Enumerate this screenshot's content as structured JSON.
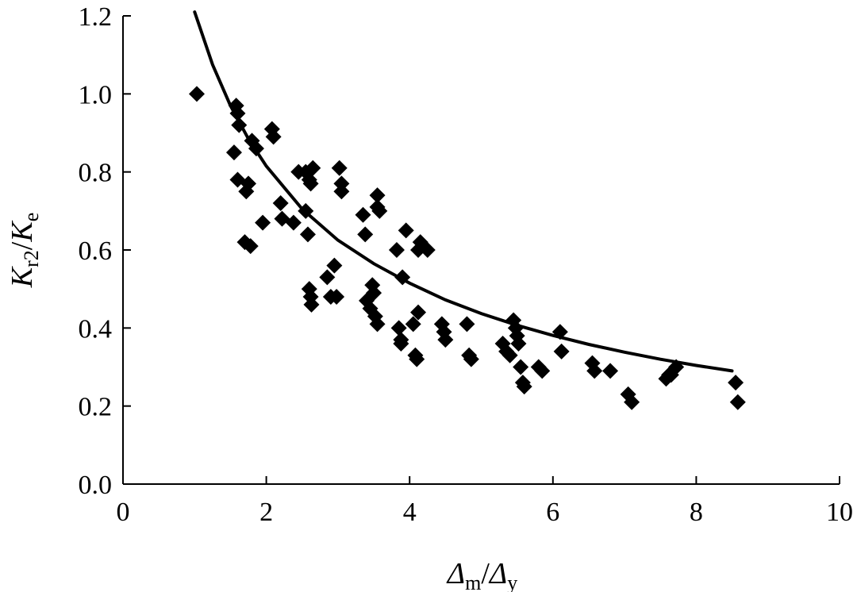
{
  "chart_data": {
    "type": "scatter",
    "title": "",
    "xlabel": {
      "main": "Δ",
      "sub": "m",
      "sep": "/",
      "main2": "Δ",
      "sub2": "y"
    },
    "ylabel": {
      "main": "K",
      "sub": "r2",
      "sep": "/",
      "main2": "K",
      "sub2": "e"
    },
    "xlim": [
      0,
      10
    ],
    "ylim": [
      0,
      1.2
    ],
    "xticks": [
      "0",
      "2",
      "4",
      "6",
      "8",
      "10"
    ],
    "yticks": [
      "0.0",
      "0.2",
      "0.4",
      "0.6",
      "0.8",
      "1.0",
      "1.2"
    ],
    "grid": false,
    "series": [
      {
        "marker": "diamond",
        "points": [
          [
            1.03,
            1.0
          ],
          [
            1.58,
            0.97
          ],
          [
            1.6,
            0.95
          ],
          [
            1.62,
            0.92
          ],
          [
            1.55,
            0.85
          ],
          [
            1.6,
            0.78
          ],
          [
            1.75,
            0.77
          ],
          [
            1.72,
            0.75
          ],
          [
            1.7,
            0.62
          ],
          [
            1.78,
            0.61
          ],
          [
            1.8,
            0.88
          ],
          [
            1.86,
            0.86
          ],
          [
            1.95,
            0.67
          ],
          [
            2.08,
            0.91
          ],
          [
            2.1,
            0.89
          ],
          [
            2.2,
            0.72
          ],
          [
            2.22,
            0.68
          ],
          [
            2.38,
            0.67
          ],
          [
            2.45,
            0.8
          ],
          [
            2.55,
            0.8
          ],
          [
            2.6,
            0.78
          ],
          [
            2.65,
            0.81
          ],
          [
            2.62,
            0.77
          ],
          [
            2.55,
            0.7
          ],
          [
            2.58,
            0.64
          ],
          [
            2.6,
            0.5
          ],
          [
            2.62,
            0.48
          ],
          [
            2.63,
            0.46
          ],
          [
            2.85,
            0.53
          ],
          [
            2.9,
            0.48
          ],
          [
            2.95,
            0.56
          ],
          [
            2.98,
            0.48
          ],
          [
            3.02,
            0.81
          ],
          [
            3.05,
            0.77
          ],
          [
            3.05,
            0.75
          ],
          [
            3.35,
            0.69
          ],
          [
            3.38,
            0.64
          ],
          [
            3.4,
            0.47
          ],
          [
            3.45,
            0.45
          ],
          [
            3.48,
            0.51
          ],
          [
            3.5,
            0.49
          ],
          [
            3.52,
            0.43
          ],
          [
            3.55,
            0.41
          ],
          [
            3.55,
            0.74
          ],
          [
            3.55,
            0.71
          ],
          [
            3.58,
            0.7
          ],
          [
            3.82,
            0.6
          ],
          [
            3.85,
            0.4
          ],
          [
            3.88,
            0.37
          ],
          [
            3.88,
            0.36
          ],
          [
            3.9,
            0.53
          ],
          [
            3.95,
            0.65
          ],
          [
            4.05,
            0.41
          ],
          [
            4.08,
            0.33
          ],
          [
            4.1,
            0.32
          ],
          [
            4.12,
            0.44
          ],
          [
            4.12,
            0.6
          ],
          [
            4.15,
            0.62
          ],
          [
            4.25,
            0.6
          ],
          [
            4.45,
            0.41
          ],
          [
            4.48,
            0.39
          ],
          [
            4.5,
            0.37
          ],
          [
            4.8,
            0.41
          ],
          [
            4.83,
            0.33
          ],
          [
            4.86,
            0.32
          ],
          [
            5.3,
            0.36
          ],
          [
            5.35,
            0.34
          ],
          [
            5.4,
            0.33
          ],
          [
            5.45,
            0.42
          ],
          [
            5.48,
            0.4
          ],
          [
            5.5,
            0.38
          ],
          [
            5.52,
            0.36
          ],
          [
            5.55,
            0.3
          ],
          [
            5.58,
            0.26
          ],
          [
            5.6,
            0.25
          ],
          [
            5.8,
            0.3
          ],
          [
            5.85,
            0.29
          ],
          [
            6.1,
            0.39
          ],
          [
            6.12,
            0.34
          ],
          [
            6.55,
            0.31
          ],
          [
            6.58,
            0.29
          ],
          [
            6.8,
            0.29
          ],
          [
            7.05,
            0.23
          ],
          [
            7.1,
            0.21
          ],
          [
            7.58,
            0.27
          ],
          [
            7.62,
            0.28
          ],
          [
            7.65,
            0.28
          ],
          [
            7.72,
            0.3
          ],
          [
            8.55,
            0.26
          ],
          [
            8.58,
            0.21
          ]
        ]
      },
      {
        "type": "line",
        "fit": "power",
        "x": [
          1.0,
          1.25,
          1.5,
          1.75,
          2.0,
          2.5,
          3.0,
          3.5,
          4.0,
          4.5,
          5.0,
          5.5,
          6.0,
          6.5,
          7.0,
          7.5,
          8.0,
          8.5
        ],
        "y": [
          1.21,
          1.075,
          0.97,
          0.885,
          0.815,
          0.705,
          0.625,
          0.565,
          0.515,
          0.472,
          0.437,
          0.407,
          0.381,
          0.358,
          0.338,
          0.32,
          0.304,
          0.29
        ]
      }
    ]
  }
}
